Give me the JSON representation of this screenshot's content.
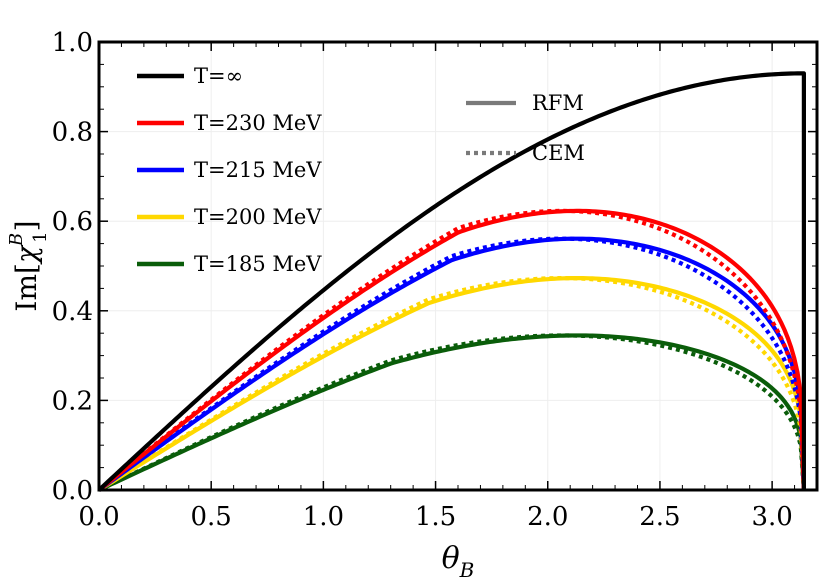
{
  "chart_data": {
    "type": "line",
    "xlabel_main": "θ",
    "xlabel_sub": "B",
    "ylabel_prefix": "Im[",
    "ylabel_chi": "χ",
    "ylabel_sup": "B",
    "ylabel_sub": "1",
    "ylabel_suffix": "]",
    "xlim": [
      0,
      3.2
    ],
    "ylim": [
      0,
      1.0
    ],
    "grid": true,
    "legend_position": "top-left",
    "xticks": [
      "0.0",
      "0.5",
      "1.0",
      "1.5",
      "2.0",
      "2.5",
      "3.0"
    ],
    "yticks": [
      "0.0",
      "0.2",
      "0.4",
      "0.6",
      "0.8",
      "1.0"
    ],
    "style_legend": [
      {
        "label": "RFM",
        "dash": "solid",
        "color": "#7a7a7a"
      },
      {
        "label": "CEM",
        "dash": "dotted",
        "color": "#7a7a7a"
      }
    ],
    "series": [
      {
        "name": "T=∞",
        "color": "#000000",
        "amp": 0.93,
        "peak": 3.1416,
        "end": 1.0,
        "rfm_x": [
          0,
          0.5,
          1.0,
          1.5,
          2.0,
          2.5,
          3.0,
          3.1416
        ],
        "rfm_y": [
          0,
          0.18,
          0.34,
          0.49,
          0.63,
          0.76,
          0.89,
          0.93
        ]
      },
      {
        "name": "T=230 MeV",
        "color": "#ff0000",
        "amp": 0.623,
        "peak": 2.67,
        "end": 0.0,
        "rfm_x": [
          0,
          0.5,
          1.0,
          1.5,
          2.0,
          2.5,
          2.7,
          3.0,
          3.14
        ],
        "rfm_y": [
          0,
          0.14,
          0.28,
          0.4,
          0.51,
          0.6,
          0.62,
          0.54,
          0.0
        ],
        "cem_y": [
          0,
          0.14,
          0.28,
          0.4,
          0.51,
          0.61,
          0.625,
          0.52,
          0.0
        ]
      },
      {
        "name": "T=215 MeV",
        "color": "#0000ff",
        "amp": 0.561,
        "peak": 2.62,
        "end": 0.0,
        "rfm_x": [
          0,
          0.5,
          1.0,
          1.5,
          2.0,
          2.5,
          2.7,
          3.0,
          3.14
        ],
        "rfm_y": [
          0,
          0.13,
          0.26,
          0.37,
          0.47,
          0.55,
          0.56,
          0.47,
          0.0
        ],
        "cem_y": [
          0,
          0.13,
          0.26,
          0.37,
          0.48,
          0.56,
          0.56,
          0.44,
          0.0
        ]
      },
      {
        "name": "T=200 MeV",
        "color": "#ffd800",
        "amp": 0.473,
        "peak": 2.45,
        "end": 0.0,
        "rfm_x": [
          0,
          0.5,
          1.0,
          1.5,
          2.0,
          2.45,
          2.7,
          3.0,
          3.14
        ],
        "rfm_y": [
          0,
          0.11,
          0.22,
          0.32,
          0.41,
          0.47,
          0.45,
          0.34,
          0.0
        ],
        "cem_y": [
          0,
          0.11,
          0.22,
          0.33,
          0.42,
          0.48,
          0.44,
          0.3,
          0.0
        ]
      },
      {
        "name": "T=185 MeV",
        "color": "#0a5d0a",
        "amp": 0.345,
        "peak": 2.17,
        "end": 0.0,
        "rfm_x": [
          0,
          0.5,
          1.0,
          1.5,
          2.0,
          2.17,
          2.5,
          2.8,
          3.0,
          3.14
        ],
        "rfm_y": [
          0,
          0.1,
          0.2,
          0.28,
          0.34,
          0.345,
          0.33,
          0.27,
          0.2,
          0.0
        ],
        "cem_y": [
          0,
          0.1,
          0.2,
          0.28,
          0.35,
          0.355,
          0.32,
          0.24,
          0.14,
          0.0
        ]
      }
    ]
  }
}
